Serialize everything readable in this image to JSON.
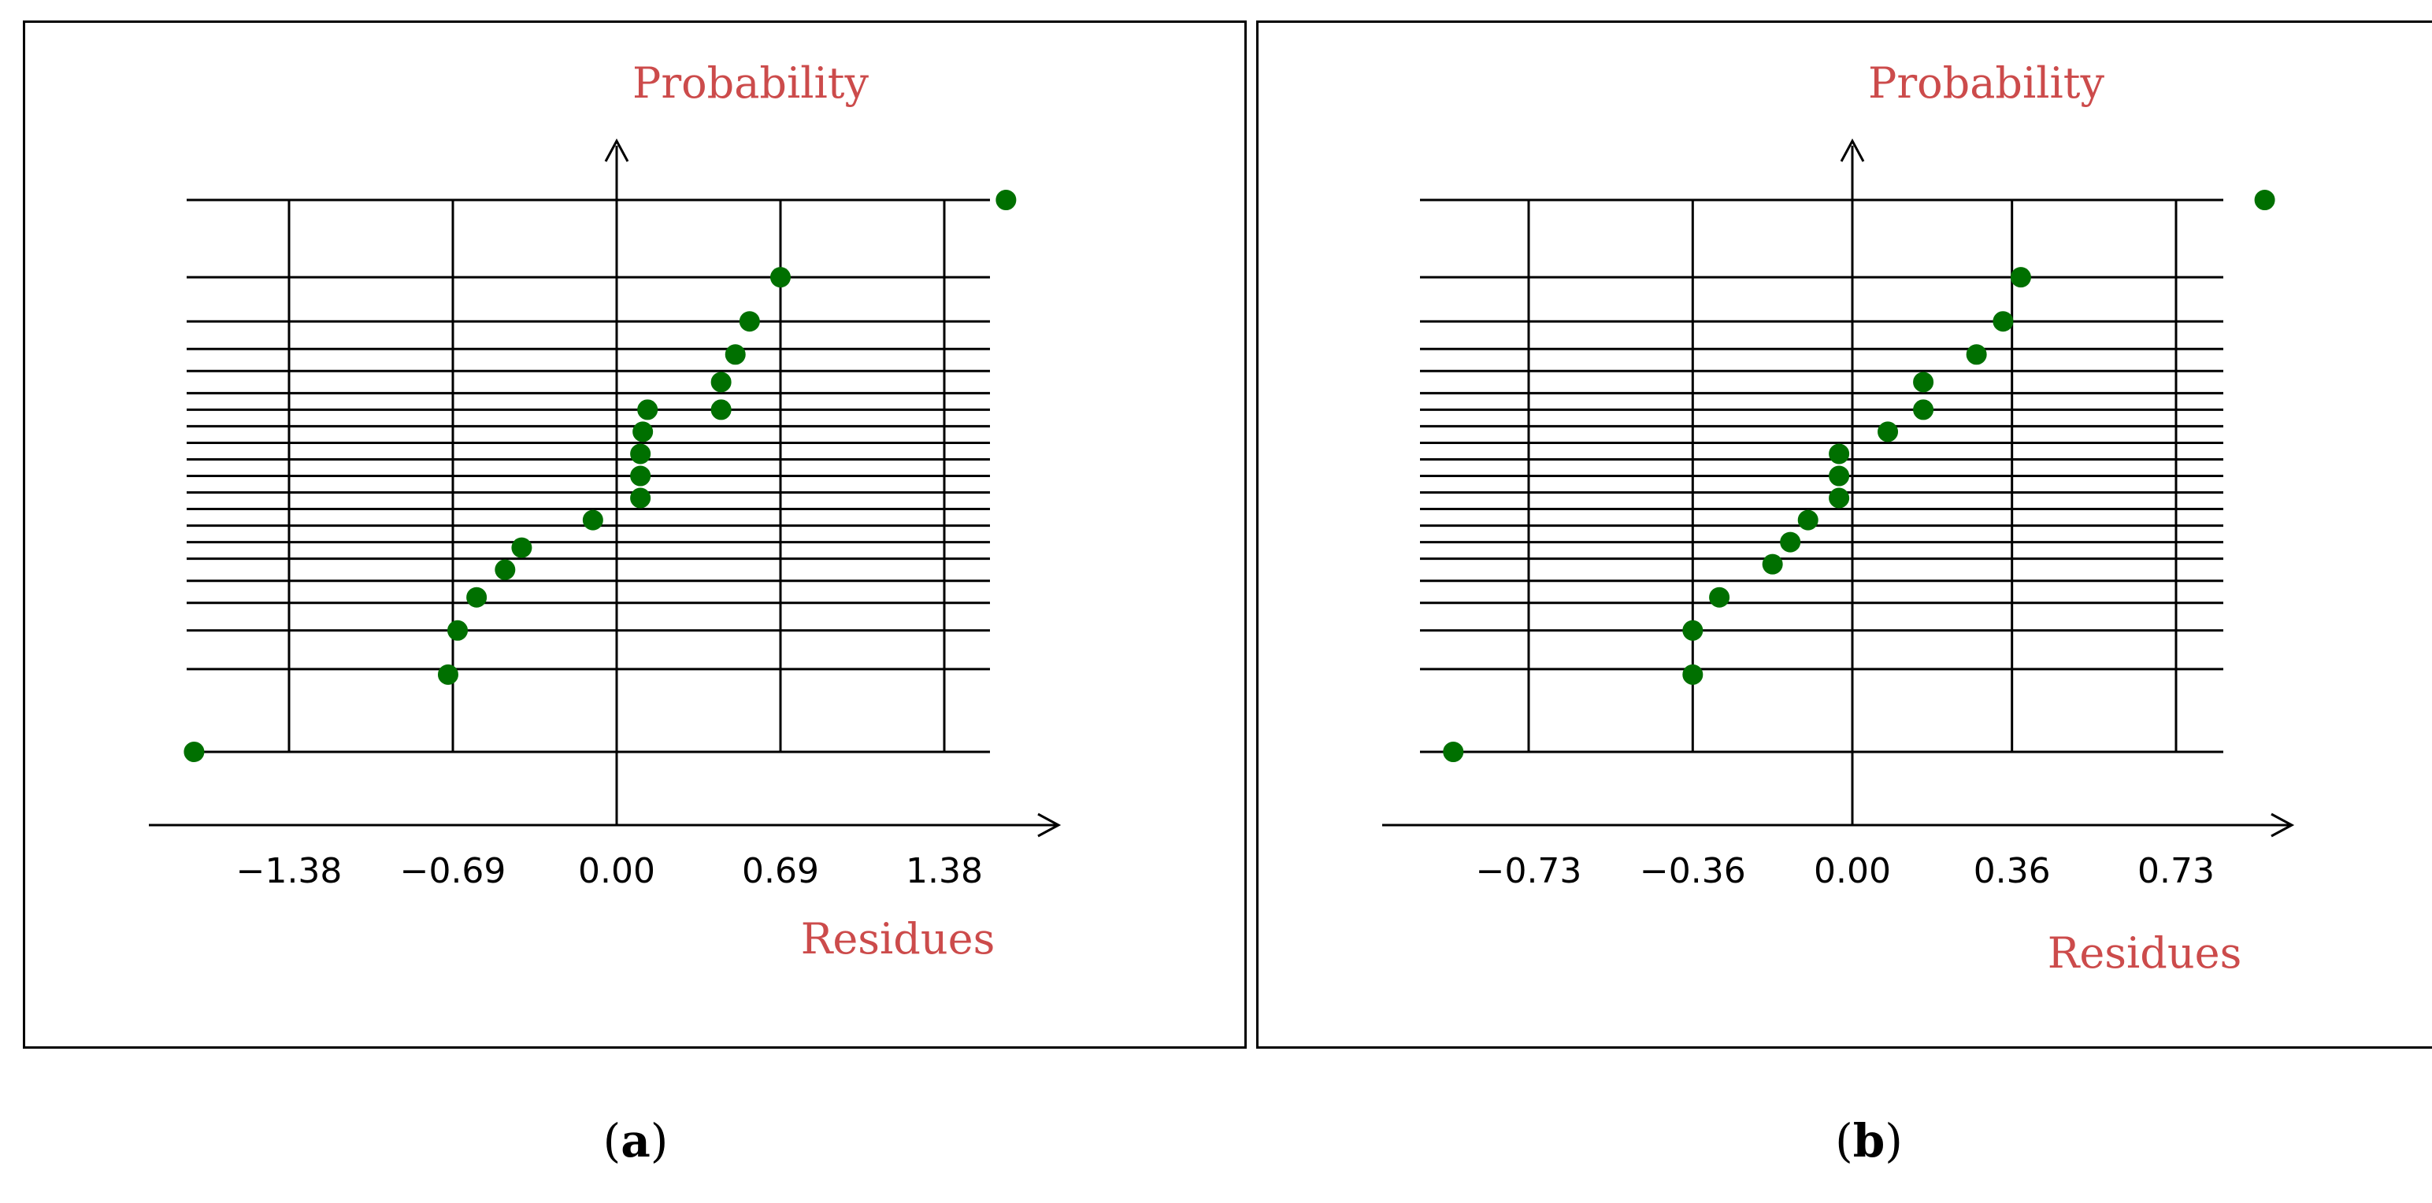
{
  "captions": {
    "a": "a",
    "b": "b"
  },
  "chart_data": [
    {
      "type": "scatter",
      "title": "",
      "ylabel": "Probability",
      "xlabel": "Residues",
      "xlim": [
        -2.1,
        1.9
      ],
      "x_ticks": [
        -1.38,
        -0.69,
        0.0,
        0.69,
        1.38
      ],
      "x_tick_labels": [
        "−1.38",
        "−0.69",
        "0.00",
        "0.69",
        "1.38"
      ],
      "y_gridlines": [
        0.0,
        0.15,
        0.22,
        0.27,
        0.31,
        0.35,
        0.38,
        0.41,
        0.44,
        0.47,
        0.5,
        0.53,
        0.56,
        0.59,
        0.62,
        0.65,
        0.69,
        0.73,
        0.78,
        0.86,
        1.0
      ],
      "grid": true,
      "marker_color": "#007000",
      "points": [
        {
          "x": -1.78,
          "y": 0.0
        },
        {
          "x": -0.71,
          "y": 0.14
        },
        {
          "x": -0.67,
          "y": 0.22
        },
        {
          "x": -0.59,
          "y": 0.28
        },
        {
          "x": -0.47,
          "y": 0.33
        },
        {
          "x": -0.4,
          "y": 0.37
        },
        {
          "x": -0.1,
          "y": 0.42
        },
        {
          "x": 0.1,
          "y": 0.46
        },
        {
          "x": 0.1,
          "y": 0.5
        },
        {
          "x": 0.1,
          "y": 0.54
        },
        {
          "x": 0.11,
          "y": 0.58
        },
        {
          "x": 0.13,
          "y": 0.62
        },
        {
          "x": 0.44,
          "y": 0.62
        },
        {
          "x": 0.44,
          "y": 0.67
        },
        {
          "x": 0.5,
          "y": 0.72
        },
        {
          "x": 0.56,
          "y": 0.78
        },
        {
          "x": 0.69,
          "y": 0.86
        },
        {
          "x": 1.64,
          "y": 1.0
        }
      ]
    },
    {
      "type": "scatter",
      "title": "",
      "ylabel": "Probability",
      "xlabel": "Residues",
      "xlim": [
        -1.1,
        1.1
      ],
      "x_ticks": [
        -0.73,
        -0.36,
        0.0,
        0.36,
        0.73
      ],
      "x_tick_labels": [
        "−0.73",
        "−0.36",
        "0.00",
        "0.36",
        "0.73"
      ],
      "y_gridlines": [
        0.0,
        0.15,
        0.22,
        0.27,
        0.31,
        0.35,
        0.38,
        0.41,
        0.44,
        0.47,
        0.5,
        0.53,
        0.56,
        0.59,
        0.62,
        0.65,
        0.69,
        0.73,
        0.78,
        0.86,
        1.0
      ],
      "grid": true,
      "marker_color": "#007000",
      "points": [
        {
          "x": -0.9,
          "y": 0.0
        },
        {
          "x": -0.36,
          "y": 0.14
        },
        {
          "x": -0.36,
          "y": 0.22
        },
        {
          "x": -0.3,
          "y": 0.28
        },
        {
          "x": -0.18,
          "y": 0.34
        },
        {
          "x": -0.14,
          "y": 0.38
        },
        {
          "x": -0.1,
          "y": 0.42
        },
        {
          "x": -0.03,
          "y": 0.46
        },
        {
          "x": -0.03,
          "y": 0.5
        },
        {
          "x": -0.03,
          "y": 0.54
        },
        {
          "x": 0.08,
          "y": 0.58
        },
        {
          "x": 0.16,
          "y": 0.62
        },
        {
          "x": 0.16,
          "y": 0.67
        },
        {
          "x": 0.28,
          "y": 0.72
        },
        {
          "x": 0.34,
          "y": 0.78
        },
        {
          "x": 0.38,
          "y": 0.86
        },
        {
          "x": 0.93,
          "y": 1.0
        }
      ]
    }
  ]
}
